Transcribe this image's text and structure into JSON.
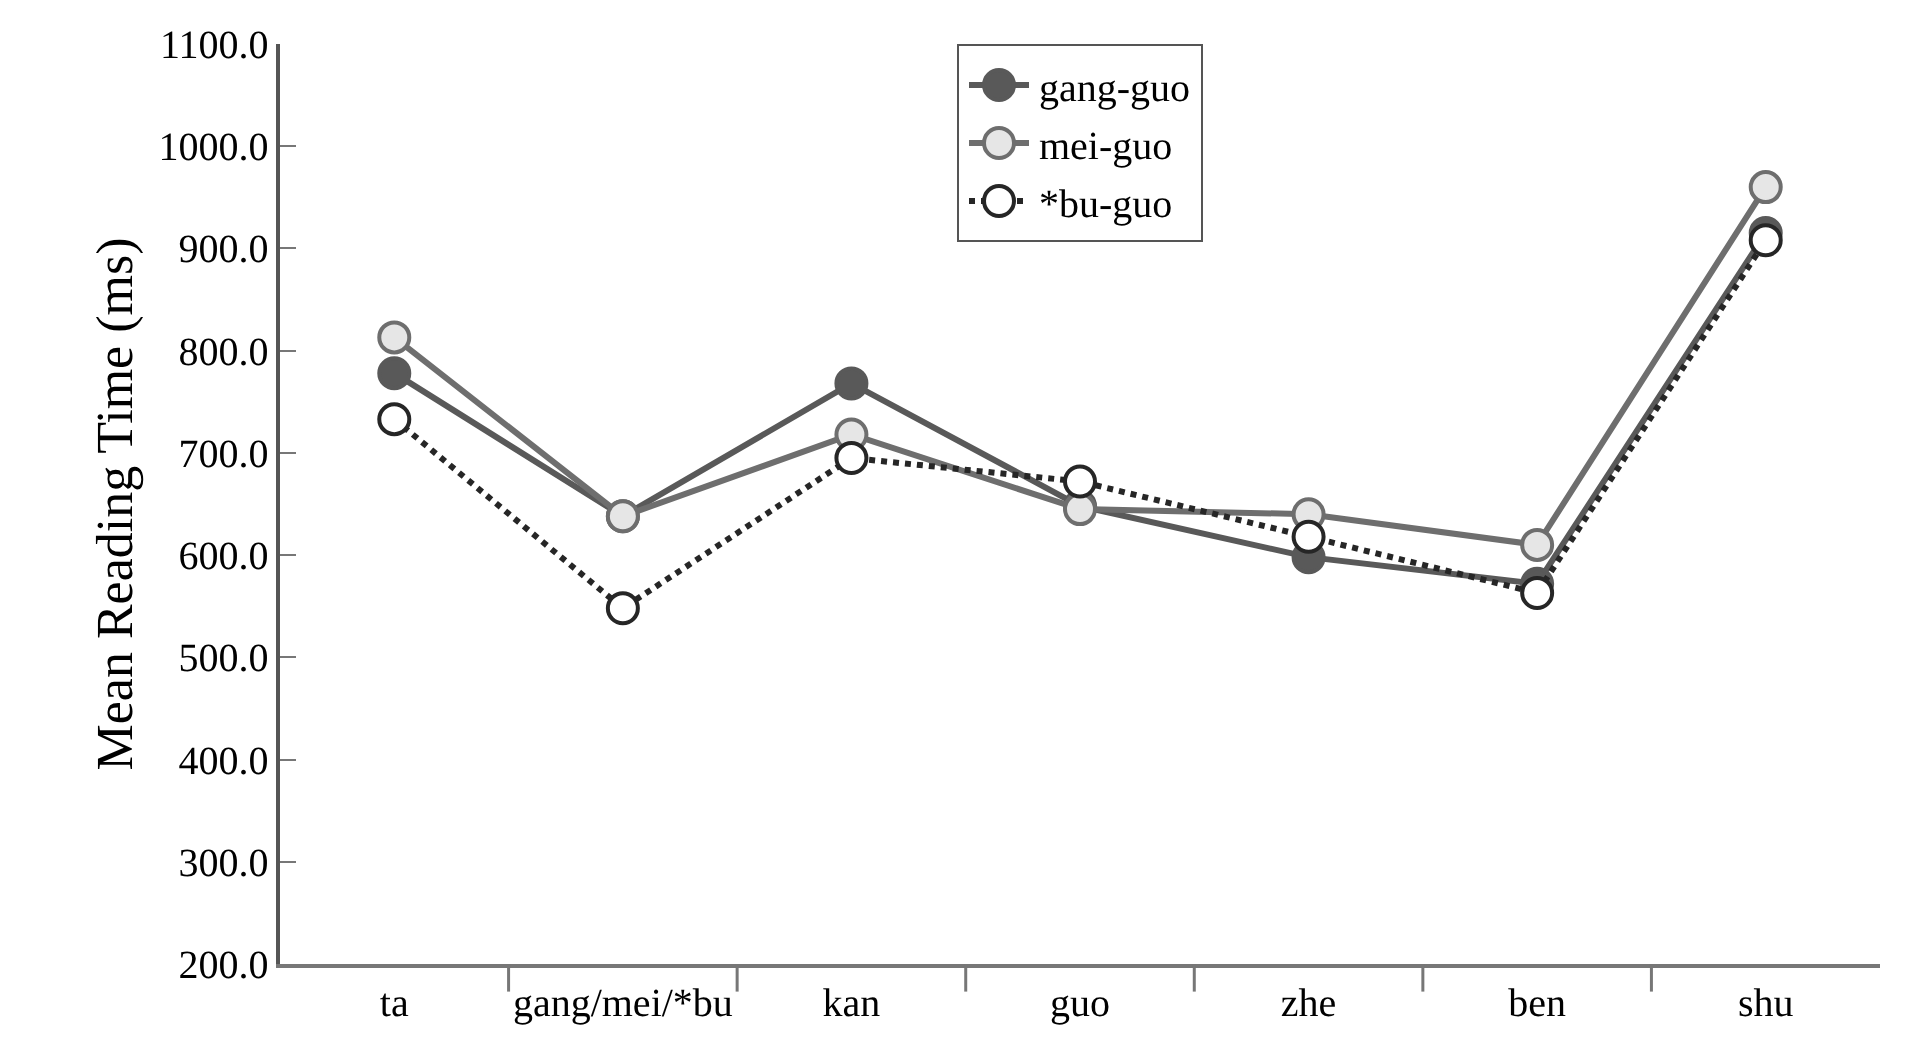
{
  "chart_data": {
    "type": "line",
    "ylabel": "Mean Reading Time (ms)",
    "categories": [
      "ta",
      "gang/mei/*bu",
      "kan",
      "guo",
      "zhe",
      "ben",
      "shu"
    ],
    "series": [
      {
        "name": "gang-guo",
        "color": "#595959",
        "values": [
          778,
          638,
          768,
          648,
          598,
          572,
          915
        ],
        "line_style": "solid"
      },
      {
        "name": "mei-guo",
        "color": "#6e6e6e",
        "values": [
          813,
          638,
          718,
          645,
          640,
          610,
          960
        ],
        "line_style": "solid"
      },
      {
        "name": "*bu-guo",
        "color": "#262626",
        "values": [
          733,
          548,
          695,
          672,
          618,
          563,
          908
        ],
        "line_style": "dotted"
      }
    ],
    "ylim": [
      200,
      1100
    ],
    "yticks": [
      {
        "value": 200,
        "label": "200.0"
      },
      {
        "value": 300,
        "label": "300.0"
      },
      {
        "value": 400,
        "label": "400.0"
      },
      {
        "value": 500,
        "label": "500.0"
      },
      {
        "value": 600,
        "label": "600.0"
      },
      {
        "value": 700,
        "label": "700.0"
      },
      {
        "value": 800,
        "label": "800.0"
      },
      {
        "value": 900,
        "label": "900.0"
      },
      {
        "value": 1000,
        "label": "1000.0"
      },
      {
        "value": 1100,
        "label": "1100.0"
      }
    ],
    "legend": "top",
    "marker": "circle"
  }
}
